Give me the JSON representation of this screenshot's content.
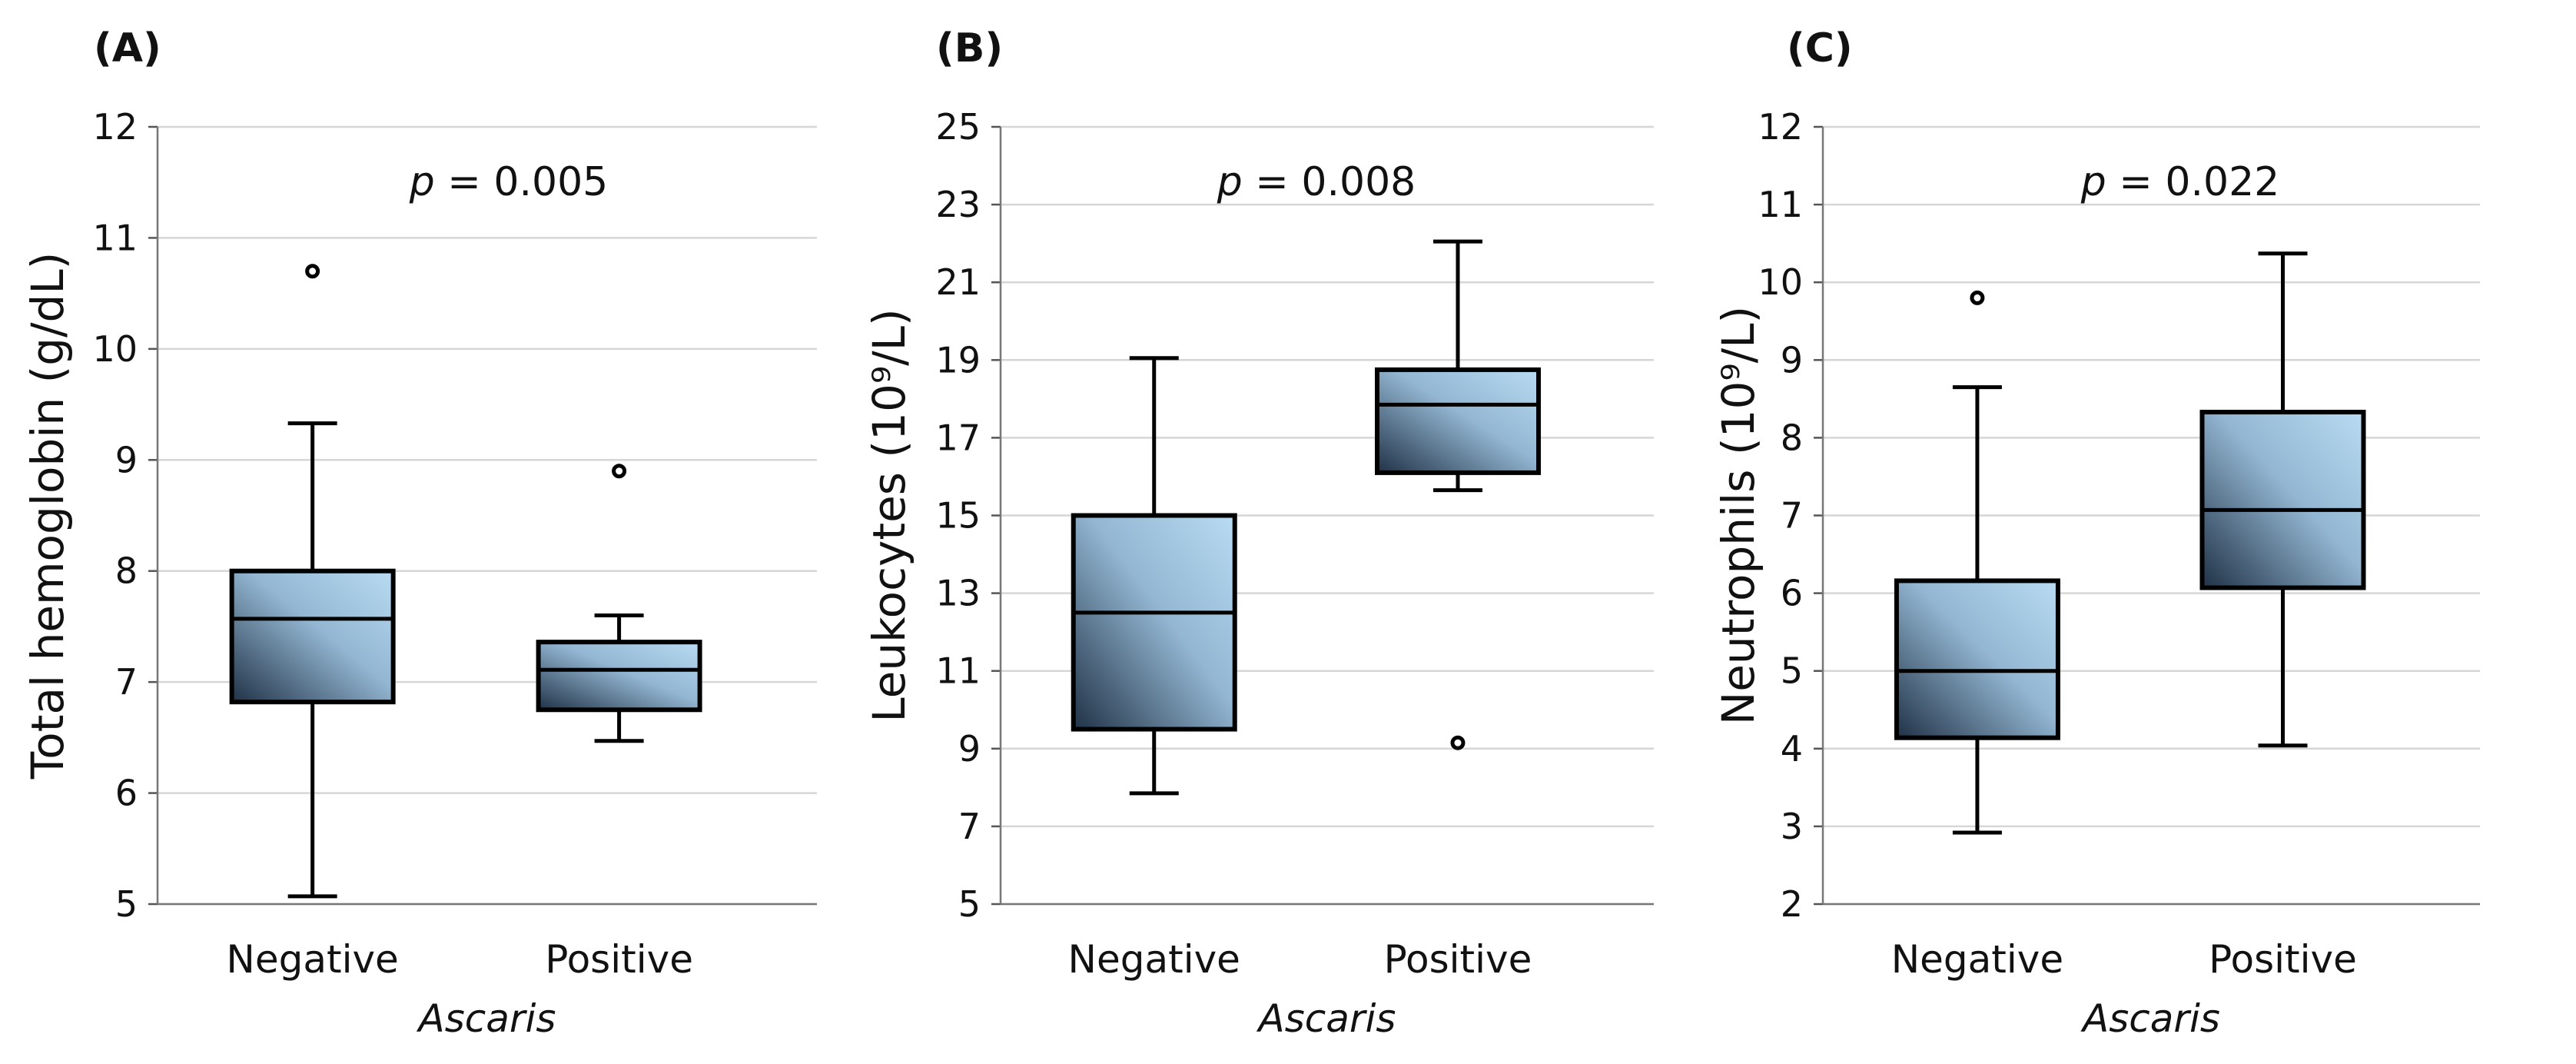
{
  "chart_data": [
    {
      "type": "box",
      "panel_label": "(A)",
      "ylabel": "Total hemoglobin (g/dL)",
      "xlabel": "Ascaris",
      "ylim": [
        5,
        12
      ],
      "yticks": [
        5,
        6,
        7,
        8,
        9,
        10,
        11,
        12
      ],
      "annotation": {
        "prefix": "p",
        "value": " = 0.005"
      },
      "categories": [
        "Negative",
        "Positive"
      ],
      "boxes": [
        {
          "name": "Negative",
          "whislo": 5.07,
          "q1": 6.82,
          "med": 7.57,
          "q3": 8.0,
          "whishi": 9.33,
          "fliers": [
            10.7
          ]
        },
        {
          "name": "Positive",
          "whislo": 6.47,
          "q1": 6.75,
          "med": 7.11,
          "q3": 7.36,
          "whishi": 7.6,
          "fliers": [
            8.9
          ]
        }
      ]
    },
    {
      "type": "box",
      "panel_label": "(B)",
      "ylabel": "Leukocytes  (10⁹/L)",
      "xlabel": "Ascaris",
      "ylim": [
        5,
        25
      ],
      "yticks": [
        5,
        7,
        9,
        11,
        13,
        15,
        17,
        19,
        21,
        23,
        25
      ],
      "annotation": {
        "prefix": "p",
        "value": " = 0.008"
      },
      "categories": [
        "Negative",
        "Positive"
      ],
      "boxes": [
        {
          "name": "Negative",
          "whislo": 7.85,
          "q1": 9.5,
          "med": 12.5,
          "q3": 15.0,
          "whishi": 19.05,
          "fliers": []
        },
        {
          "name": "Positive",
          "whislo": 15.65,
          "q1": 16.1,
          "med": 17.85,
          "q3": 18.75,
          "whishi": 22.05,
          "fliers": [
            9.15
          ]
        }
      ]
    },
    {
      "type": "box",
      "panel_label": "(C)",
      "ylabel": "Neutrophils (10⁹/L)",
      "xlabel": "Ascaris",
      "ylim": [
        2,
        12
      ],
      "yticks": [
        2,
        3,
        4,
        5,
        6,
        7,
        8,
        9,
        10,
        11,
        12
      ],
      "annotation": {
        "prefix": "p",
        "value": " = 0.022"
      },
      "categories": [
        "Negative",
        "Positive"
      ],
      "boxes": [
        {
          "name": "Negative",
          "whislo": 2.92,
          "q1": 4.14,
          "med": 5.0,
          "q3": 6.16,
          "whishi": 8.65,
          "fliers": [
            9.8
          ]
        },
        {
          "name": "Positive",
          "whislo": 4.04,
          "q1": 6.07,
          "med": 7.07,
          "q3": 8.33,
          "whishi": 10.37,
          "fliers": []
        }
      ]
    }
  ],
  "colors": {
    "box_light": "#b9dcf3",
    "box_dark": "#203246",
    "grid": "#d6d6d6",
    "line": "#000000"
  }
}
